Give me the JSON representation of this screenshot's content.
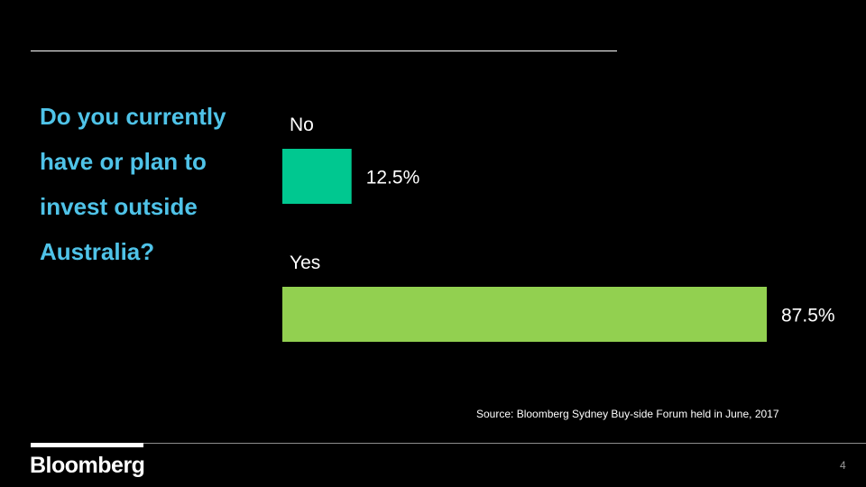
{
  "slide": {
    "question": "Do you currently have or plan to invest outside Australia?",
    "source": "Source: Bloomberg  Sydney Buy-side Forum held in June, 2017",
    "logo_text": "Bloomberg",
    "page_number": "4"
  },
  "colors": {
    "background": "#000000",
    "question_text": "#4fc3e8",
    "bar_no": "#00c890",
    "bar_yes": "#92d050"
  },
  "chart_data": {
    "type": "bar",
    "orientation": "horizontal",
    "categories": [
      "No",
      "Yes"
    ],
    "values": [
      12.5,
      87.5
    ],
    "value_labels": [
      "12.5%",
      "87.5%"
    ],
    "unit": "%",
    "xlim": [
      0,
      100
    ],
    "grid": false,
    "legend": "none",
    "title": "",
    "xlabel": "",
    "ylabel": ""
  }
}
